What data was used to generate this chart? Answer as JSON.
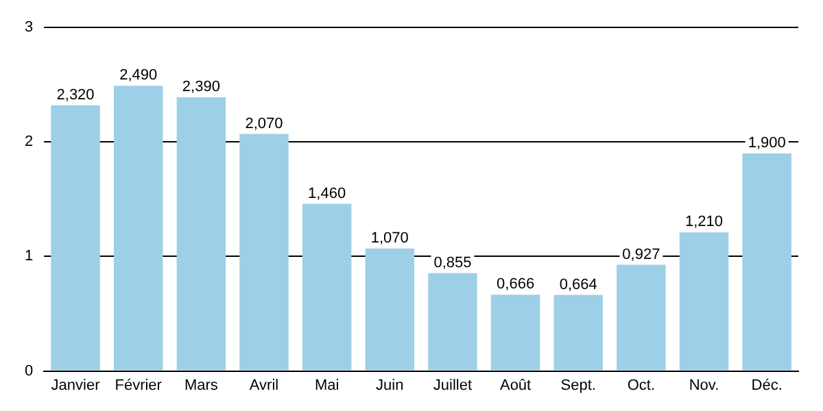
{
  "chart_data": {
    "type": "bar",
    "categories": [
      "Janvier",
      "Février",
      "Mars",
      "Avril",
      "Mai",
      "Juin",
      "Juillet",
      "Août",
      "Sept.",
      "Oct.",
      "Nov.",
      "Déc."
    ],
    "values": [
      2.32,
      2.49,
      2.39,
      2.07,
      1.46,
      1.07,
      0.855,
      0.666,
      0.664,
      0.927,
      1.21,
      1.9
    ],
    "value_labels": [
      "2,320",
      "2,490",
      "2,390",
      "2,070",
      "1,460",
      "1,070",
      "0,855",
      "0,666",
      "0,664",
      "0,927",
      "1,210",
      "1,900"
    ],
    "color": "#9dcfe7",
    "ylim": [
      0,
      3
    ],
    "yticks": [
      0,
      1,
      2,
      3
    ],
    "grid": "y",
    "legend": false
  }
}
